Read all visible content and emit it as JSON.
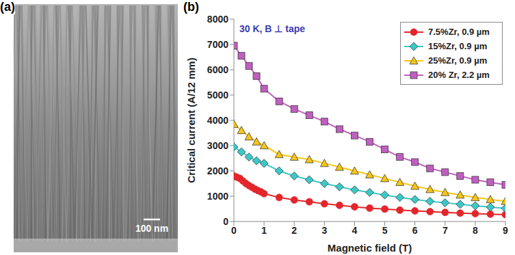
{
  "chart_data": {
    "type": "line",
    "panel_label": "(b)",
    "annotations": [
      "30 K, B ⊥ tape"
    ],
    "xlabel": "Magnetic field (T)",
    "ylabel": "Critical current (A/12 mm)",
    "xlim": [
      0,
      9
    ],
    "xticks": [
      0,
      1,
      2,
      3,
      4,
      5,
      6,
      7,
      8,
      9
    ],
    "ylim": [
      0,
      8000
    ],
    "yticks": [
      0,
      1000,
      2000,
      3000,
      4000,
      5000,
      6000,
      7000,
      8000
    ],
    "grid": false,
    "legend": "upper right",
    "series": [
      {
        "name": "7.5%Zr, 0.9 µm",
        "color": "#e3262b",
        "marker": "circle",
        "x": [
          0,
          0.1,
          0.2,
          0.3,
          0.4,
          0.5,
          0.6,
          0.7,
          0.8,
          0.9,
          1.0,
          1.5,
          2,
          2.5,
          3,
          3.5,
          4,
          4.5,
          5,
          5.5,
          6,
          6.5,
          7,
          7.5,
          8,
          8.5,
          9
        ],
        "values": [
          1800,
          1750,
          1700,
          1600,
          1500,
          1420,
          1350,
          1280,
          1220,
          1170,
          1100,
          950,
          850,
          780,
          700,
          640,
          580,
          530,
          490,
          450,
          420,
          390,
          360,
          330,
          310,
          290,
          270
        ]
      },
      {
        "name": "15%Zr, 0.9 µm",
        "color": "#3cc8c8",
        "marker": "diamond",
        "x": [
          0,
          0.25,
          0.5,
          0.75,
          1,
          1.5,
          2,
          2.5,
          3,
          3.5,
          4,
          4.5,
          5,
          5.5,
          6,
          6.5,
          7,
          7.5,
          8,
          8.5,
          9
        ],
        "values": [
          2950,
          2750,
          2550,
          2400,
          2300,
          2000,
          1800,
          1650,
          1500,
          1370,
          1250,
          1150,
          1050,
          950,
          870,
          800,
          740,
          680,
          620,
          570,
          520
        ]
      },
      {
        "name": "25%Zr, 0.9 µm",
        "color": "#f5c518",
        "marker": "triangle",
        "x": [
          0,
          0.25,
          0.5,
          0.75,
          1,
          1.5,
          2,
          2.5,
          3,
          3.5,
          4,
          4.5,
          5,
          5.5,
          6,
          6.5,
          7,
          7.5,
          8,
          8.5,
          9
        ],
        "values": [
          3850,
          3600,
          3350,
          3150,
          3000,
          2650,
          2550,
          2450,
          2300,
          2150,
          2000,
          1850,
          1700,
          1550,
          1400,
          1270,
          1150,
          1050,
          950,
          870,
          800
        ]
      },
      {
        "name": "20% Zr, 2.2 µm",
        "color": "#c05fc0",
        "marker": "square",
        "x": [
          0,
          0.25,
          0.5,
          0.75,
          1,
          1.5,
          2,
          2.5,
          3,
          3.5,
          4,
          4.5,
          5,
          5.5,
          6,
          6.5,
          7,
          7.5,
          8,
          8.5,
          9
        ],
        "values": [
          6950,
          6550,
          6150,
          5750,
          5250,
          4750,
          4450,
          4200,
          3950,
          3650,
          3400,
          3150,
          2850,
          2550,
          2350,
          2100,
          1950,
          1800,
          1650,
          1550,
          1450
        ]
      }
    ]
  },
  "image_panel": {
    "panel_label": "(a)",
    "scale_bar": "100 nm"
  }
}
